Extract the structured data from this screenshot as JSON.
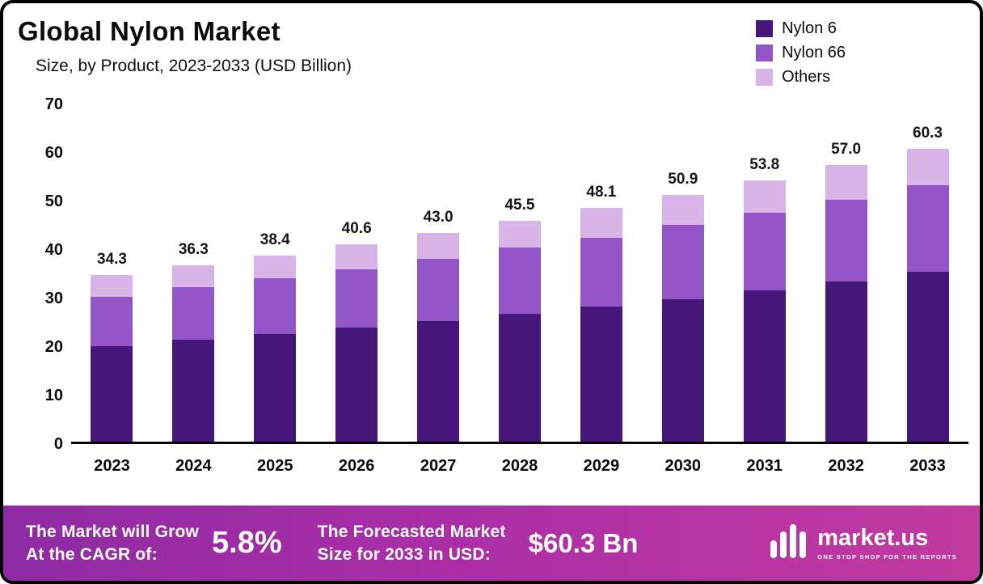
{
  "header": {
    "title": "Global Nylon Market",
    "subtitle": "Size, by Product, 2023-2033 (USD Billion)"
  },
  "legend": [
    {
      "label": "Nylon 6",
      "color": "#46167a"
    },
    {
      "label": "Nylon 66",
      "color": "#9455c8"
    },
    {
      "label": "Others",
      "color": "#d8b4e8"
    }
  ],
  "chart_data": {
    "type": "bar",
    "stacked": true,
    "title": "Global Nylon Market",
    "subtitle": "Size, by Product, 2023-2033 (USD Billion)",
    "xlabel": "",
    "ylabel": "USD Billion",
    "ylim": [
      0,
      70
    ],
    "yticks": [
      0,
      10,
      20,
      30,
      40,
      50,
      60,
      70
    ],
    "grid": false,
    "legend_position": "top-right",
    "categories": [
      "2023",
      "2024",
      "2025",
      "2026",
      "2027",
      "2028",
      "2029",
      "2030",
      "2031",
      "2032",
      "2033"
    ],
    "series": [
      {
        "name": "Nylon 6",
        "color": "#46167a",
        "values": [
          19.7,
          21.0,
          22.2,
          23.5,
          24.8,
          26.3,
          27.8,
          29.4,
          31.2,
          33.0,
          35.0
        ]
      },
      {
        "name": "Nylon 66",
        "color": "#9455c8",
        "values": [
          10.2,
          10.8,
          11.5,
          12.0,
          12.9,
          13.7,
          14.2,
          15.2,
          16.0,
          16.8,
          17.8
        ]
      },
      {
        "name": "Others",
        "color": "#d8b4e8",
        "values": [
          4.4,
          4.5,
          4.7,
          5.1,
          5.3,
          5.5,
          6.1,
          6.3,
          6.6,
          7.2,
          7.5
        ]
      }
    ],
    "totals": [
      34.3,
      36.3,
      38.4,
      40.6,
      43.0,
      45.5,
      48.1,
      50.9,
      53.8,
      57.0,
      60.3
    ],
    "total_labels": [
      "34.3",
      "36.3",
      "38.4",
      "40.6",
      "43.0",
      "45.5",
      "48.1",
      "50.9",
      "53.8",
      "57.0",
      "60.3"
    ]
  },
  "footer": {
    "cagr_label": "The Market will Grow\nAt the CAGR of:",
    "cagr_value": "5.8%",
    "forecast_label": "The Forecasted Market\nSize for 2033 in USD:",
    "forecast_value": "$60.3 Bn",
    "brand": "market.us",
    "brand_tagline": "One Stop Shop For The Reports"
  }
}
